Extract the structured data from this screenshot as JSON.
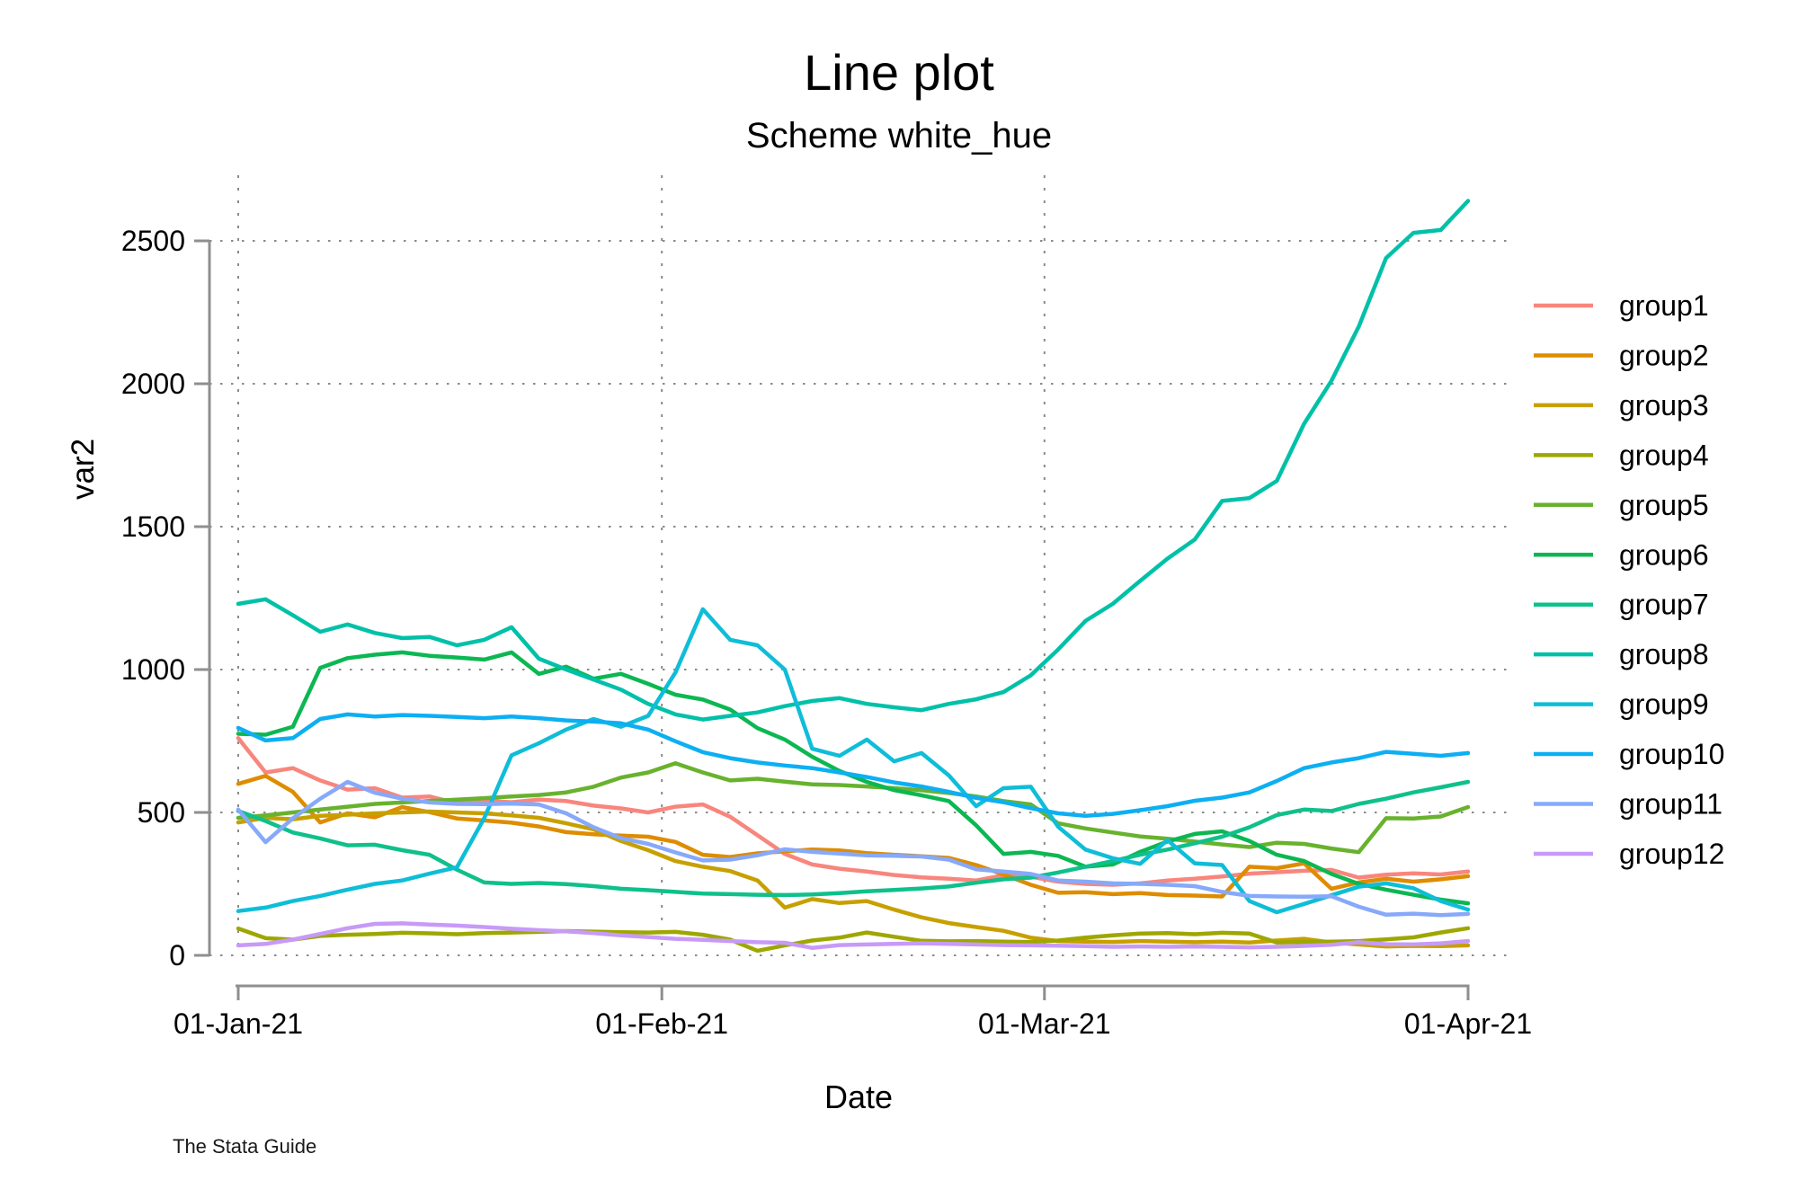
{
  "chart": {
    "title": "Line plot",
    "subtitle": "Scheme white_hue",
    "x_label": "Date",
    "y_label": "var2",
    "watermark": "The Stata Guide"
  },
  "chart_data": {
    "type": "line",
    "title": "Line plot",
    "subtitle": "Scheme white_hue",
    "xlabel": "Date",
    "ylabel": "var2",
    "grid": true,
    "legend_position": "right",
    "ylim": [
      0,
      2500
    ],
    "y_ticks": [
      0,
      500,
      1000,
      1500,
      2000,
      2500
    ],
    "x_ticks": [
      {
        "day": 0,
        "label": "01-Jan-21"
      },
      {
        "day": 31,
        "label": "01-Feb-21"
      },
      {
        "day": 59,
        "label": "01-Mar-21"
      },
      {
        "day": 90,
        "label": "01-Apr-21"
      }
    ],
    "x_unit": "days since 01-Jan-21",
    "sample_days": [
      0,
      2,
      4,
      6,
      8,
      10,
      12,
      14,
      16,
      18,
      20,
      22,
      24,
      26,
      28,
      30,
      32,
      34,
      36,
      38,
      40,
      42,
      44,
      46,
      48,
      50,
      52,
      54,
      56,
      58,
      60,
      62,
      64,
      66,
      68,
      70,
      72,
      74,
      76,
      78,
      80,
      82,
      84,
      86,
      88,
      90
    ],
    "series": [
      {
        "name": "group1",
        "color": "#F8867D",
        "values": [
          760,
          640,
          655,
          612,
          580,
          585,
          552,
          556,
          532,
          541,
          536,
          545,
          540,
          524,
          514,
          500,
          520,
          528,
          485,
          420,
          355,
          318,
          303,
          293,
          281,
          273,
          268,
          262,
          280,
          275,
          258,
          250,
          247,
          252,
          262,
          268,
          276,
          286,
          291,
          296,
          299,
          272,
          282,
          287,
          283,
          293
        ]
      },
      {
        "name": "group2",
        "color": "#DE8C00",
        "values": [
          600,
          628,
          572,
          465,
          497,
          483,
          519,
          501,
          479,
          472,
          464,
          451,
          431,
          424,
          419,
          415,
          397,
          352,
          344,
          357,
          364,
          370,
          367,
          358,
          352,
          347,
          341,
          316,
          283,
          247,
          219,
          221,
          214,
          218,
          211,
          209,
          206,
          310,
          305,
          322,
          233,
          255,
          268,
          258,
          266,
          277
        ]
      },
      {
        "name": "group3",
        "color": "#C7A000",
        "values": [
          465,
          481,
          476,
          488,
          492,
          497,
          500,
          503,
          500,
          497,
          490,
          481,
          462,
          441,
          400,
          368,
          330,
          310,
          295,
          262,
          167,
          197,
          183,
          190,
          160,
          133,
          113,
          99,
          86,
          62,
          50,
          48,
          47,
          50,
          48,
          46,
          48,
          45,
          52,
          58,
          45,
          38,
          31,
          33,
          32,
          35
        ]
      },
      {
        "name": "group4",
        "color": "#9EA700",
        "values": [
          94,
          60,
          55,
          68,
          72,
          75,
          79,
          77,
          74,
          78,
          80,
          82,
          85,
          83,
          81,
          80,
          82,
          72,
          55,
          16,
          35,
          52,
          62,
          80,
          65,
          51,
          49,
          50,
          48,
          47,
          52,
          62,
          70,
          76,
          78,
          74,
          79,
          76,
          45,
          47,
          48,
          50,
          56,
          63,
          80,
          95
        ]
      },
      {
        "name": "group5",
        "color": "#68B22E",
        "values": [
          481,
          490,
          500,
          510,
          520,
          530,
          535,
          540,
          545,
          550,
          556,
          561,
          570,
          590,
          622,
          640,
          672,
          640,
          612,
          618,
          608,
          598,
          596,
          591,
          585,
          578,
          568,
          556,
          540,
          528,
          462,
          444,
          430,
          416,
          408,
          398,
          388,
          379,
          394,
          390,
          374,
          361,
          480,
          479,
          486,
          519
        ]
      },
      {
        "name": "group6",
        "color": "#0CB752",
        "values": [
          775,
          772,
          800,
          1006,
          1040,
          1052,
          1060,
          1048,
          1042,
          1035,
          1060,
          985,
          1010,
          968,
          985,
          950,
          912,
          895,
          860,
          795,
          755,
          695,
          645,
          607,
          578,
          560,
          540,
          455,
          355,
          362,
          348,
          310,
          318,
          362,
          398,
          425,
          434,
          400,
          352,
          330,
          285,
          250,
          230,
          212,
          195,
          182
        ]
      },
      {
        "name": "group7",
        "color": "#0FC08B",
        "values": [
          505,
          470,
          430,
          409,
          385,
          387,
          368,
          352,
          300,
          255,
          250,
          253,
          249,
          242,
          233,
          228,
          222,
          216,
          214,
          212,
          211,
          213,
          218,
          224,
          229,
          234,
          241,
          254,
          266,
          272,
          290,
          310,
          330,
          352,
          370,
          392,
          415,
          448,
          491,
          510,
          505,
          530,
          548,
          570,
          588,
          607
        ]
      },
      {
        "name": "group8",
        "color": "#00C1A8",
        "values": [
          1230,
          1246,
          1190,
          1132,
          1158,
          1128,
          1110,
          1114,
          1085,
          1104,
          1148,
          1038,
          1000,
          965,
          930,
          880,
          843,
          825,
          838,
          850,
          872,
          890,
          900,
          880,
          868,
          858,
          880,
          896,
          921,
          980,
          1070,
          1170,
          1230,
          1310,
          1388,
          1455,
          1590,
          1600,
          1660,
          1860,
          2010,
          2200,
          2440,
          2528,
          2538,
          2640
        ]
      },
      {
        "name": "group9",
        "color": "#0FBDD8",
        "values": [
          155,
          167,
          190,
          208,
          230,
          250,
          262,
          286,
          308,
          480,
          700,
          742,
          790,
          827,
          800,
          838,
          990,
          1211,
          1104,
          1085,
          1000,
          723,
          698,
          755,
          679,
          708,
          630,
          522,
          585,
          590,
          450,
          370,
          340,
          320,
          403,
          322,
          316,
          190,
          151,
          180,
          210,
          240,
          252,
          235,
          190,
          160
        ]
      },
      {
        "name": "group10",
        "color": "#0DAFF2",
        "values": [
          796,
          752,
          760,
          827,
          843,
          836,
          841,
          838,
          834,
          830,
          836,
          830,
          822,
          818,
          812,
          790,
          749,
          711,
          690,
          675,
          664,
          655,
          640,
          624,
          605,
          591,
          572,
          551,
          536,
          515,
          497,
          488,
          495,
          508,
          522,
          541,
          552,
          570,
          610,
          655,
          675,
          690,
          712,
          705,
          698,
          708
        ]
      },
      {
        "name": "group11",
        "color": "#86A9FA",
        "values": [
          510,
          396,
          480,
          548,
          607,
          569,
          548,
          535,
          530,
          529,
          531,
          528,
          497,
          448,
          410,
          390,
          360,
          332,
          335,
          350,
          371,
          362,
          356,
          350,
          348,
          346,
          335,
          301,
          293,
          285,
          262,
          258,
          252,
          250,
          247,
          242,
          222,
          208,
          206,
          205,
          207,
          170,
          142,
          146,
          141,
          145
        ]
      },
      {
        "name": "group12",
        "color": "#C79AF8",
        "values": [
          35,
          40,
          55,
          75,
          95,
          110,
          112,
          108,
          104,
          99,
          93,
          88,
          84,
          78,
          70,
          64,
          58,
          54,
          50,
          46,
          44,
          26,
          36,
          38,
          40,
          42,
          40,
          38,
          36,
          35,
          34,
          32,
          30,
          31,
          30,
          31,
          30,
          28,
          30,
          33,
          37,
          46,
          39,
          38,
          42,
          50
        ]
      }
    ]
  }
}
